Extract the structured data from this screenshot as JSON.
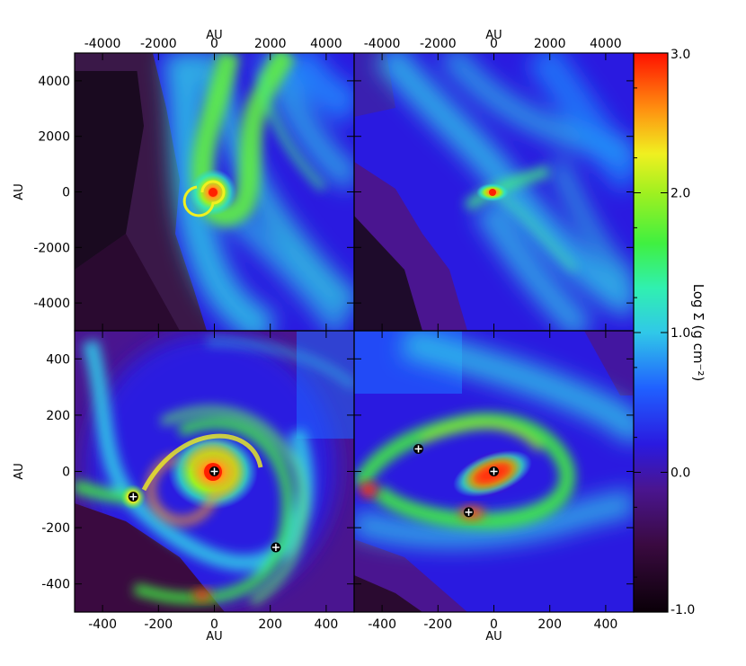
{
  "figure": {
    "colorbar": {
      "label": "Log Σ (g cm⁻²)",
      "ticks": [
        "3.0",
        "2.0",
        "1.0",
        "0.0",
        "-1.0"
      ],
      "values": [
        3.0,
        2.0,
        1.0,
        0.0,
        -1.0
      ],
      "range": [
        -1.0,
        3.0
      ]
    },
    "panels": [
      {
        "id": "top-left",
        "x_axis_title": "AU",
        "y_axis_title": "AU",
        "x_ticks": [
          "-4000",
          "-2000",
          "0",
          "2000",
          "4000"
        ],
        "y_ticks": [
          "4000",
          "2000",
          "0",
          "-2000",
          "-4000"
        ],
        "range": [
          -5000,
          5000
        ]
      },
      {
        "id": "top-right",
        "x_axis_title": "AU",
        "x_ticks": [
          "-4000",
          "-2000",
          "0",
          "2000",
          "4000"
        ],
        "range": [
          -5000,
          5000
        ]
      },
      {
        "id": "bottom-left",
        "x_axis_title": "AU",
        "y_axis_title": "AU",
        "x_ticks": [
          "-400",
          "-200",
          "0",
          "200",
          "400"
        ],
        "y_ticks": [
          "400",
          "200",
          "0",
          "-200",
          "-400"
        ],
        "range": [
          -500,
          500
        ],
        "sinks": [
          [
            0,
            0
          ],
          [
            -290,
            -90
          ],
          [
            220,
            -270
          ]
        ]
      },
      {
        "id": "bottom-right",
        "x_axis_title": "AU",
        "x_ticks": [
          "-400",
          "-200",
          "0",
          "200",
          "400"
        ],
        "range": [
          -500,
          500
        ],
        "sinks": [
          [
            0,
            0
          ],
          [
            -270,
            80
          ],
          [
            -90,
            -145
          ]
        ]
      }
    ]
  }
}
